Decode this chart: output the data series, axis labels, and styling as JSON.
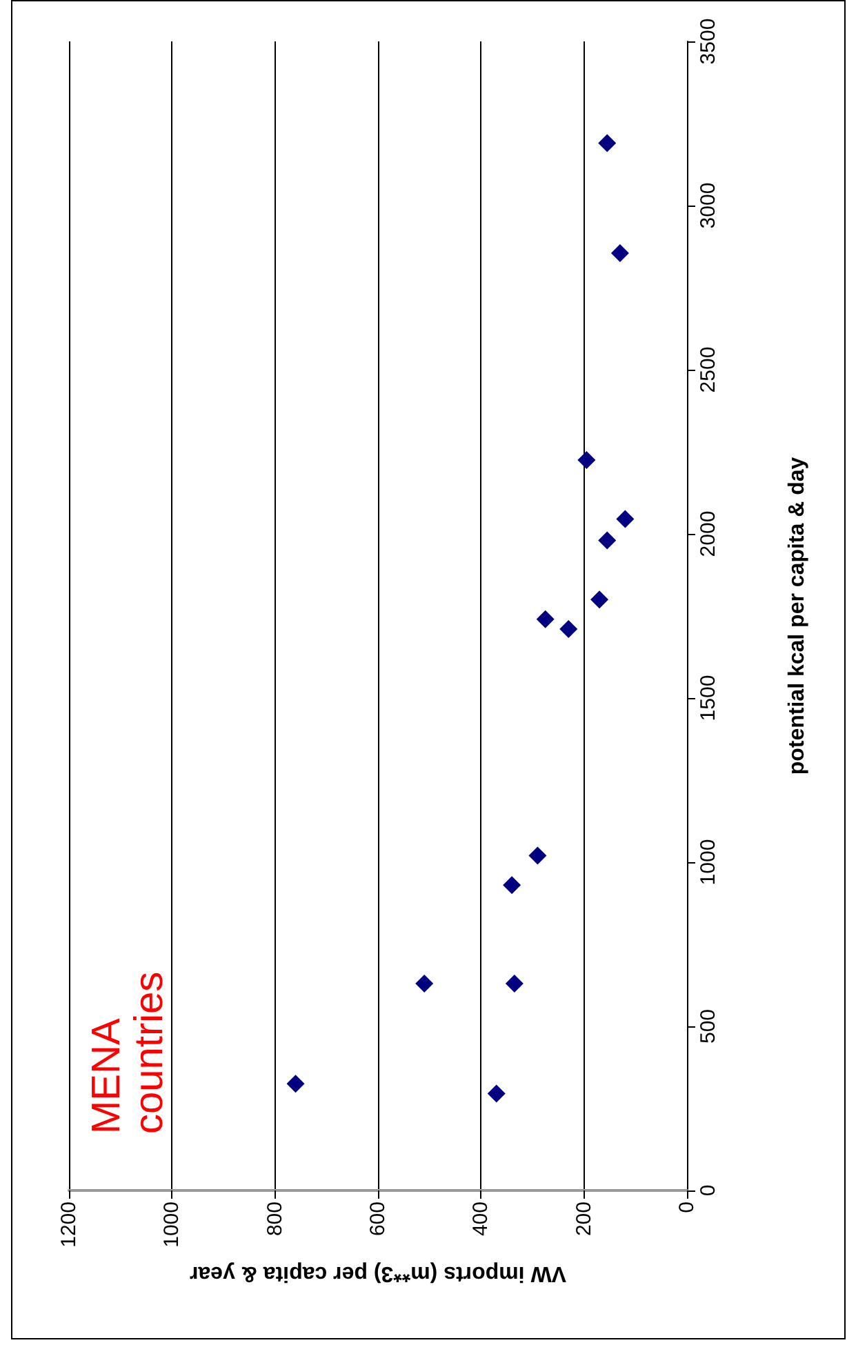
{
  "chart_data": {
    "type": "scatter",
    "xlabel": "VW imports (m**3) per capita & year",
    "ylabel": "potential kcal per capita & day",
    "annotations": [
      "MENA countries"
    ],
    "x": [
      290,
      340,
      510,
      335,
      760,
      370,
      195,
      120,
      155,
      170,
      275,
      230,
      155,
      130
    ],
    "series": [
      {
        "color": "#000080",
        "values": [
          1020,
          930,
          630,
          630,
          325,
          295,
          2225,
          2045,
          1980,
          1800,
          1740,
          1710,
          3190,
          2855
        ]
      }
    ],
    "xlim": [
      1200,
      0
    ],
    "xticks": [
      1200,
      1000,
      800,
      600,
      400,
      200,
      0
    ],
    "ylim": [
      0,
      3500
    ],
    "yticks": [
      0,
      500,
      1000,
      1500,
      2000,
      2500,
      3000,
      3500
    ],
    "grid": "x",
    "marker": "diamond"
  }
}
